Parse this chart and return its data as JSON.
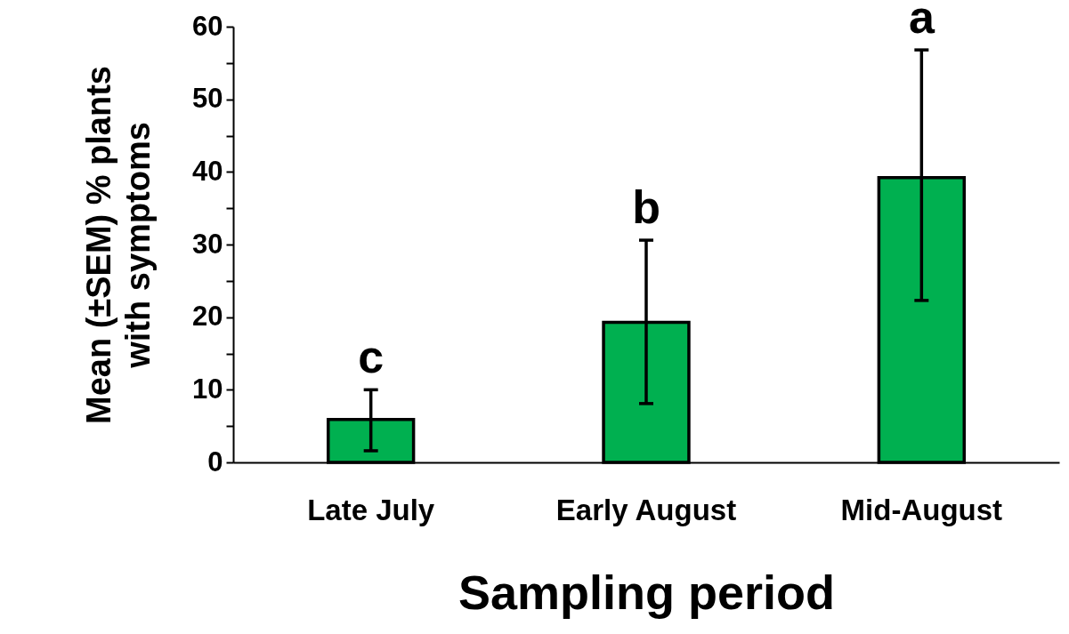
{
  "chart_data": {
    "type": "bar",
    "xlabel": "Sampling period",
    "ylabel": "Mean (±SEM) % plants with symptoms",
    "categories": [
      "Late July",
      "Early August",
      "Mid-August"
    ],
    "values": [
      5.9,
      19.3,
      39.2
    ],
    "color": "#00b050",
    "errors": [
      [
        1.6,
        10.0
      ],
      [
        8.1,
        30.6
      ],
      [
        22.3,
        56.8
      ]
    ],
    "ylim": [
      0,
      60
    ],
    "yticks": [
      0,
      {
        "value": 5,
        "label": null
      },
      10,
      {
        "value": 15,
        "label": null
      },
      20,
      {
        "value": 25,
        "label": null
      },
      30,
      {
        "value": 35,
        "label": null
      },
      40,
      {
        "value": 45,
        "label": null
      },
      50,
      {
        "value": 55,
        "label": null
      },
      60
    ],
    "grid": false,
    "annotations": [
      "c",
      "b",
      "a"
    ]
  }
}
